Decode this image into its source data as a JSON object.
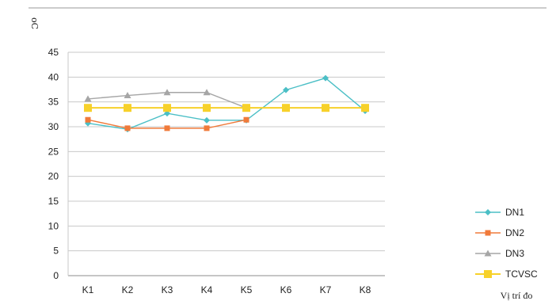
{
  "chart_data": {
    "type": "line",
    "ylabel": "oC",
    "xlabel": "Vị trí đo",
    "categories": [
      "K1",
      "K2",
      "K3",
      "K4",
      "K5",
      "K6",
      "K7",
      "K8"
    ],
    "ylim": [
      0,
      45
    ],
    "yticks": [
      0,
      5,
      10,
      15,
      20,
      25,
      30,
      35,
      40,
      45
    ],
    "grid": true,
    "legend": "bottom-right",
    "series": [
      {
        "name": "DN1",
        "color": "#4bbfc6",
        "marker": "diamond",
        "values": [
          30.7,
          29.5,
          32.7,
          31.3,
          31.3,
          37.4,
          39.8,
          33.2
        ]
      },
      {
        "name": "DN2",
        "color": "#f07a3a",
        "marker": "square",
        "values": [
          31.4,
          29.7,
          29.7,
          29.7,
          31.4,
          null,
          null,
          null
        ]
      },
      {
        "name": "DN3",
        "color": "#a6a6a6",
        "marker": "triangle",
        "values": [
          35.6,
          36.3,
          36.9,
          36.9,
          33.8,
          null,
          null,
          null
        ]
      },
      {
        "name": "TCVSC",
        "color": "#f7d12a",
        "marker": "square-large",
        "values": [
          33.8,
          33.8,
          33.8,
          33.8,
          33.8,
          33.8,
          33.8,
          33.8
        ]
      }
    ]
  }
}
